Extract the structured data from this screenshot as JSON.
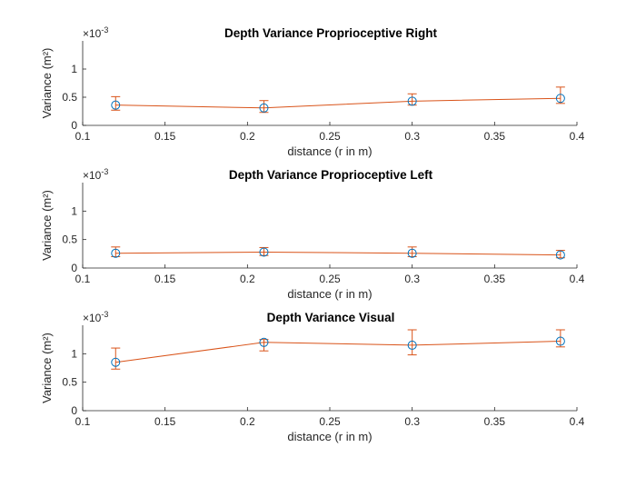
{
  "chart_data": [
    {
      "type": "line",
      "title": "Depth Variance Proprioceptive Right",
      "xlabel": "distance (r in m)",
      "ylabel": "Variance (m²)",
      "y_exponent": "×10",
      "y_exponent_power": "-3",
      "xlim": [
        0.1,
        0.4
      ],
      "ylim": [
        0,
        1.5
      ],
      "xticks": [
        "0.1",
        "0.15",
        "0.2",
        "0.25",
        "0.3",
        "0.35",
        "0.4"
      ],
      "yticks": [
        "0",
        "0.5",
        "1"
      ],
      "x": [
        0.12,
        0.21,
        0.3,
        0.39
      ],
      "series": [
        {
          "values": [
            0.36,
            0.31,
            0.43,
            0.48
          ],
          "error_low": [
            0.09,
            0.08,
            0.07,
            0.09
          ],
          "error_high": [
            0.15,
            0.13,
            0.13,
            0.2
          ]
        }
      ]
    },
    {
      "type": "line",
      "title": "Depth Variance Proprioceptive Left",
      "xlabel": "distance (r in m)",
      "ylabel": "Variance (m²)",
      "y_exponent": "×10",
      "y_exponent_power": "-3",
      "xlim": [
        0.1,
        0.4
      ],
      "ylim": [
        0,
        1.5
      ],
      "xticks": [
        "0.1",
        "0.15",
        "0.2",
        "0.25",
        "0.3",
        "0.35",
        "0.4"
      ],
      "yticks": [
        "0",
        "0.5",
        "1"
      ],
      "x": [
        0.12,
        0.21,
        0.3,
        0.39
      ],
      "series": [
        {
          "values": [
            0.26,
            0.28,
            0.26,
            0.23
          ],
          "error_low": [
            0.06,
            0.06,
            0.06,
            0.05
          ],
          "error_high": [
            0.11,
            0.08,
            0.11,
            0.08
          ]
        }
      ]
    },
    {
      "type": "line",
      "title": "Depth Variance Visual",
      "xlabel": "distance (r in m)",
      "ylabel": "Variance (m²)",
      "y_exponent": "×10",
      "y_exponent_power": "-3",
      "xlim": [
        0.1,
        0.4
      ],
      "ylim": [
        0,
        1.5
      ],
      "xticks": [
        "0.1",
        "0.15",
        "0.2",
        "0.25",
        "0.3",
        "0.35",
        "0.4"
      ],
      "yticks": [
        "0",
        "0.5",
        "1"
      ],
      "x": [
        0.12,
        0.21,
        0.3,
        0.39
      ],
      "series": [
        {
          "values": [
            0.85,
            1.2,
            1.15,
            1.22
          ],
          "error_low": [
            0.12,
            0.15,
            0.17,
            0.1
          ],
          "error_high": [
            0.25,
            0.05,
            0.27,
            0.2
          ]
        }
      ]
    }
  ],
  "colors": {
    "line": "#D95319",
    "marker": "#0072BD",
    "errorbar": "#D95319",
    "axis": "#262626"
  }
}
